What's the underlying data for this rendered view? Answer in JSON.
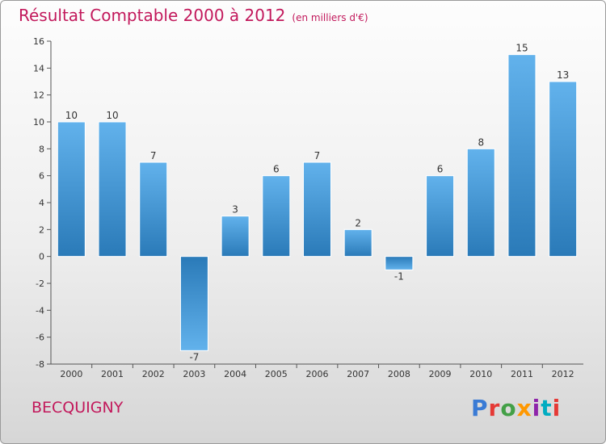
{
  "header": {
    "title": "Résultat Comptable 2000 à 2012",
    "subtitle": "(en milliers d'€)"
  },
  "footer": {
    "commune": "BECQUIGNY",
    "logo_text": "Proxiti"
  },
  "colors": {
    "title": "#c2185b",
    "bar_light": "#62b2ec",
    "bar_dark": "#2a7ab8",
    "logo": [
      "#3a7bd5",
      "#e53935",
      "#43a047",
      "#ff9800",
      "#8e24aa",
      "#00acc1",
      "#e53935"
    ]
  },
  "chart_data": {
    "type": "bar",
    "title": "Résultat Comptable 2000 à 2012",
    "subtitle": "(en milliers d'€)",
    "xlabel": "",
    "ylabel": "",
    "categories": [
      "2000",
      "2001",
      "2002",
      "2003",
      "2004",
      "2005",
      "2006",
      "2007",
      "2008",
      "2009",
      "2010",
      "2011",
      "2012"
    ],
    "values": [
      10,
      10,
      7,
      -7,
      3,
      6,
      7,
      2,
      -1,
      6,
      8,
      15,
      13
    ],
    "ylim": [
      -8,
      16
    ],
    "yticks": [
      -8,
      -6,
      -4,
      -2,
      0,
      2,
      4,
      6,
      8,
      10,
      12,
      14,
      16
    ],
    "grid": false,
    "data_labels": true
  }
}
